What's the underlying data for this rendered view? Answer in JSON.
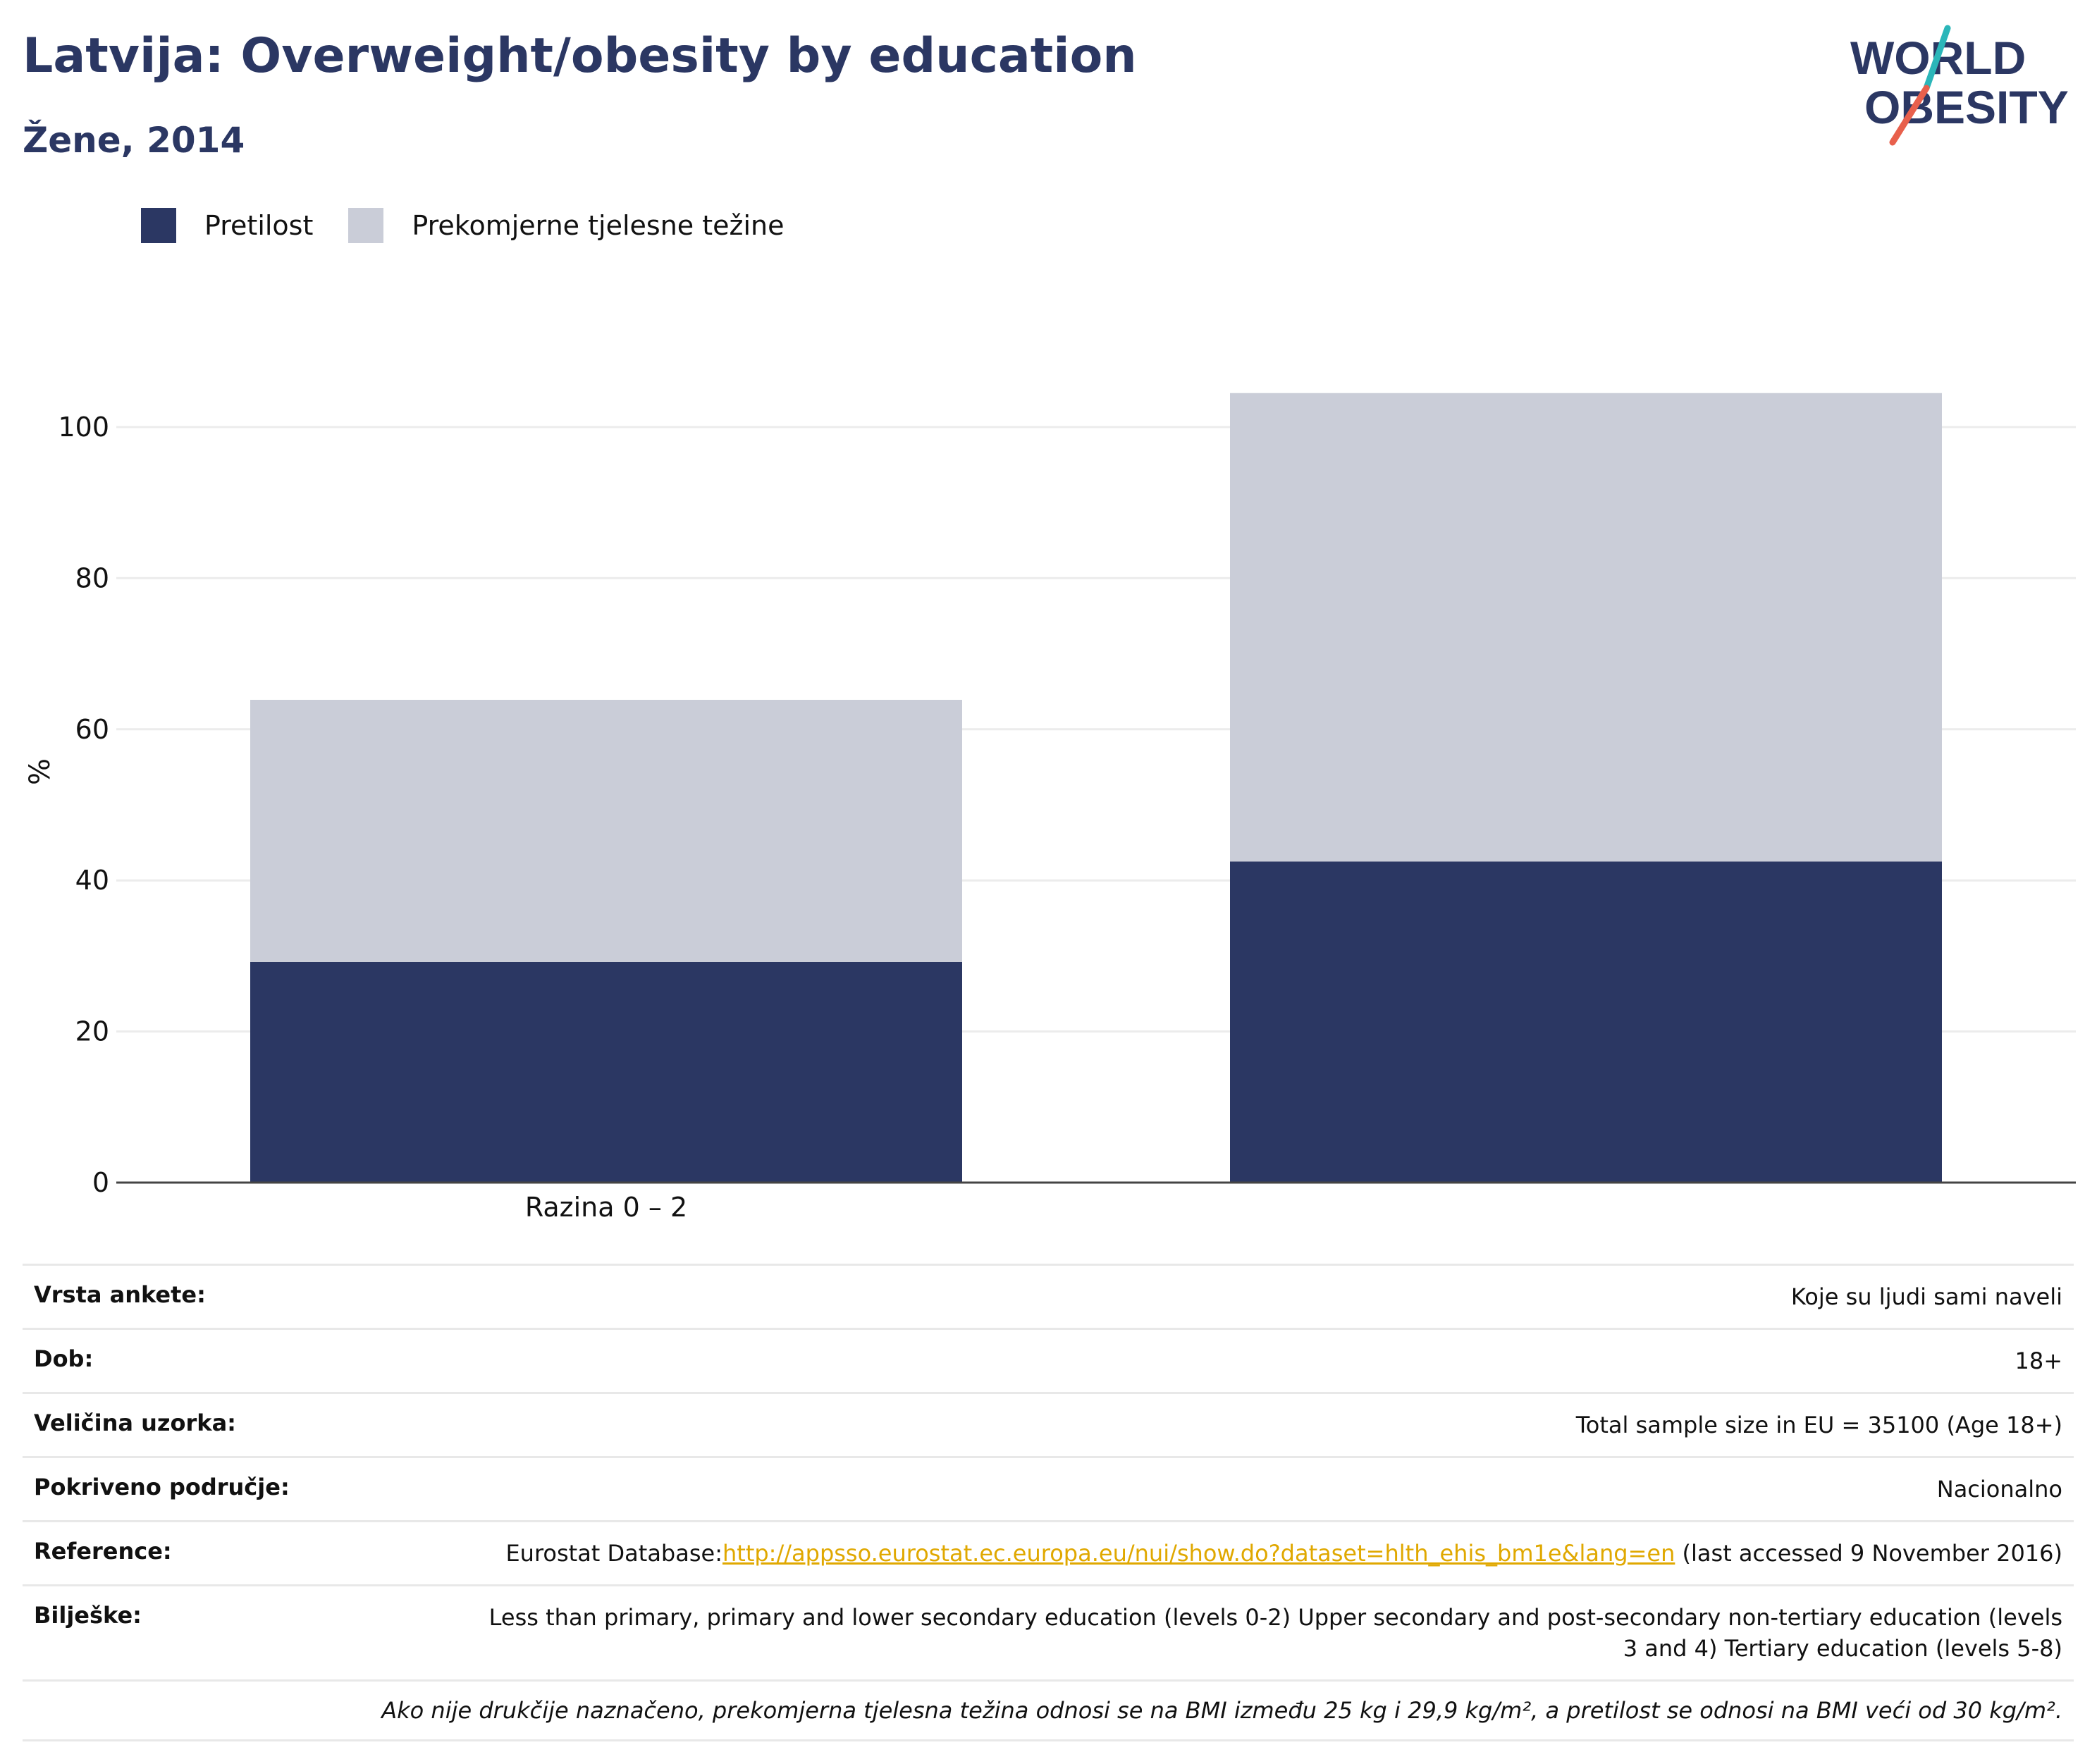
{
  "header": {
    "title": "Latvija: Overweight/obesity by education",
    "subtitle": "Žene, 2014"
  },
  "logo": {
    "line1": "WORLD",
    "line2": "OBESITY",
    "colors": {
      "text": "#2b3763",
      "slash_teal": "#2bb6b9",
      "slash_red": "#e8604c"
    }
  },
  "legend": {
    "items": [
      {
        "label": "Pretilost",
        "color": "#2b3763"
      },
      {
        "label": "Prekomjerne tjelesne težine",
        "color": "#cacdd8"
      }
    ]
  },
  "chart_data": {
    "type": "bar",
    "stacked": true,
    "categories": [
      "Razina 0 – 2",
      ""
    ],
    "series": [
      {
        "name": "Pretilost",
        "color": "#2b3763",
        "values": [
          29.2,
          42.5
        ]
      },
      {
        "name": "Prekomjerne tjelesne težine",
        "color": "#cacdd8",
        "values": [
          34.7,
          62.0
        ]
      }
    ],
    "ylabel": "%",
    "xlabel": "",
    "ylim": [
      0,
      104.5
    ],
    "yticks": [
      0,
      20,
      40,
      60,
      80,
      100
    ],
    "grid": true,
    "legend_position": "top-left"
  },
  "info": {
    "rows": [
      {
        "key": "Vrsta ankete:",
        "value": "Koje su ljudi sami naveli"
      },
      {
        "key": "Dob:",
        "value": "18+"
      },
      {
        "key": "Veličina uzorka:",
        "value": "Total sample size in EU = 35100 (Age 18+)"
      },
      {
        "key": "Pokriveno područje:",
        "value": "Nacionalno"
      }
    ],
    "reference": {
      "key": "Reference:",
      "prefix": "Eurostat Database:",
      "link": "http://appsso.eurostat.ec.europa.eu/nui/show.do?dataset=hlth_ehis_bm1e&lang=en",
      "suffix": " (last accessed 9 November 2016)"
    },
    "notes": {
      "key": "Bilješke:",
      "value": "Less than primary, primary and lower secondary education (levels 0-2) Upper secondary and post-secondary non-tertiary education (levels 3 and 4) Tertiary education (levels 5-8)"
    },
    "footnote": "Ako nije drukčije naznačeno, prekomjerna tjelesna težina odnosi se na BMI između 25 kg i 29,9 kg/m², a pretilost se odnosi na BMI veći od 30 kg/m²."
  }
}
